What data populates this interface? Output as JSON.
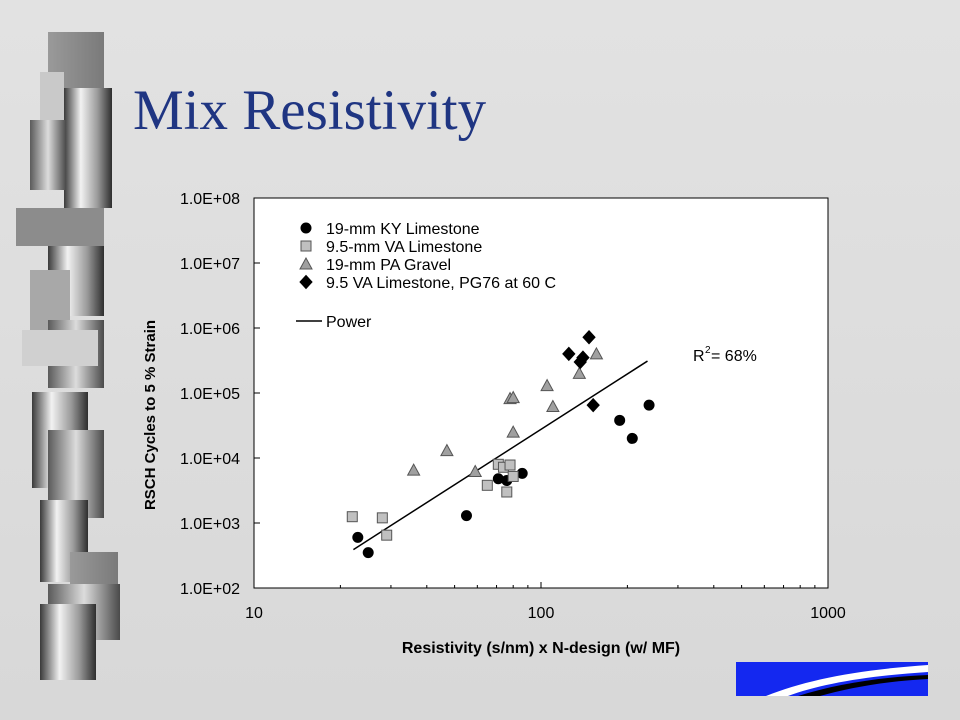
{
  "slide": {
    "title": "Mix Resistivity"
  },
  "colors": {
    "title": "#1f3582",
    "logo_blue": "#1428f0",
    "plot_bg": "#ffffff",
    "series_fill_black": "#000000",
    "series_fill_light_gray": "#c0c0c0",
    "series_fill_gray": "#a0a0a0"
  },
  "chart_data": {
    "type": "scatter",
    "xlabel": "Resistivity (s/nm) x  N-design (w/ MF)",
    "ylabel": "RSCH Cycles to 5 % Strain",
    "xscale": "log",
    "yscale": "log",
    "xlim": [
      10,
      1000
    ],
    "ylim": [
      100,
      100000000
    ],
    "x_tick_labels": [
      "10",
      "100",
      "1000"
    ],
    "y_tick_labels": [
      "1.0E+02",
      "1.0E+03",
      "1.0E+04",
      "1.0E+05",
      "1.0E+06",
      "1.0E+07",
      "1.0E+08"
    ],
    "grid": false,
    "legend_position": "top-left",
    "annotation": "R² = 68%",
    "annotation_parts": {
      "prefix": "R",
      "sup": "2",
      "suffix": " = 68%"
    },
    "series": [
      {
        "name": "19-mm KY Limestone",
        "marker": "circle",
        "color": "#000000",
        "points": [
          [
            23,
            600
          ],
          [
            25,
            350
          ],
          [
            55,
            1300
          ],
          [
            71,
            4800
          ],
          [
            76,
            4500
          ],
          [
            86,
            5800
          ],
          [
            188,
            38000
          ],
          [
            208,
            20000
          ],
          [
            238,
            65000
          ]
        ]
      },
      {
        "name": "9.5-mm VA Limestone",
        "marker": "square",
        "color": "#c0c0c0",
        "points": [
          [
            22,
            1250
          ],
          [
            28,
            1200
          ],
          [
            29,
            650
          ],
          [
            65,
            3800
          ],
          [
            71,
            8000
          ],
          [
            74,
            7200
          ],
          [
            76,
            3000
          ],
          [
            78,
            7800
          ],
          [
            80,
            5200
          ]
        ]
      },
      {
        "name": "19-mm PA Gravel",
        "marker": "triangle",
        "color": "#a0a0a0",
        "points": [
          [
            36,
            6500
          ],
          [
            47,
            13000
          ],
          [
            59,
            6200
          ],
          [
            78,
            82000
          ],
          [
            80,
            85000
          ],
          [
            80,
            25000
          ],
          [
            105,
            130000
          ],
          [
            110,
            62000
          ],
          [
            136,
            200000
          ],
          [
            156,
            400000
          ]
        ]
      },
      {
        "name": "9.5 VA Limestone, PG76 at 60 C",
        "marker": "diamond",
        "color": "#000000",
        "points": [
          [
            125,
            400000
          ],
          [
            137,
            300000
          ],
          [
            140,
            350000
          ],
          [
            147,
            720000
          ],
          [
            152,
            65000
          ]
        ]
      }
    ],
    "fit": {
      "name": "Power",
      "line": [
        [
          22.2,
          390
        ],
        [
          235,
          310000
        ]
      ]
    }
  }
}
